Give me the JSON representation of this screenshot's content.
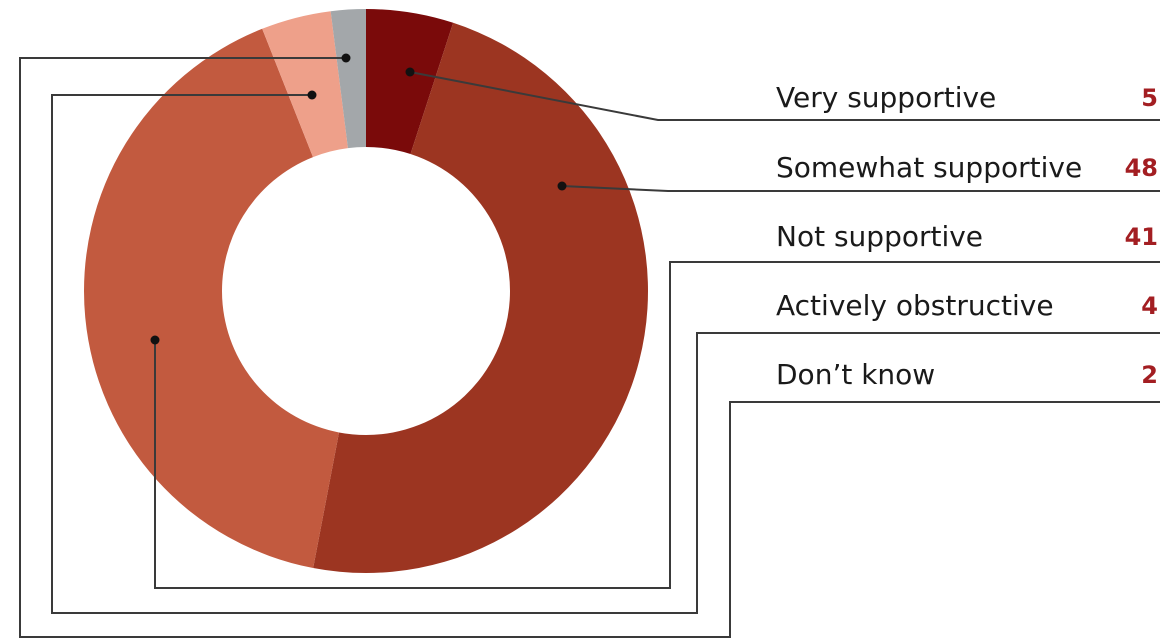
{
  "chart_data": {
    "type": "pie",
    "variant": "donut",
    "categories": [
      "Very supportive",
      "Somewhat supportive",
      "Not supportive",
      "Actively obstructive",
      "Don’t know"
    ],
    "values": [
      5,
      48,
      41,
      4,
      2
    ],
    "value_labels": [
      "5",
      "48",
      "41",
      "4",
      "2"
    ],
    "colors": [
      "#7a0a0a",
      "#9c3521",
      "#c25a3f",
      "#eea08a",
      "#a3a7aa"
    ],
    "legend_position": "right",
    "start_angle_deg": 0,
    "direction": "clockwise"
  }
}
